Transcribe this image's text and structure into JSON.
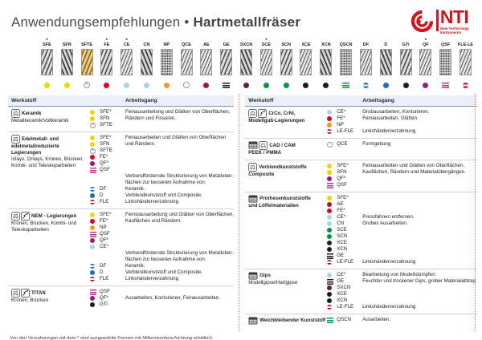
{
  "header": {
    "title1": "Anwendungsempfehlungen",
    "bullet": "•",
    "title2": "Hartmetallfräser",
    "logo": {
      "brand": "NTI",
      "sub1": "New Technology",
      "sub2": "Instruments",
      "color": "#d2121e"
    }
  },
  "burr_strip": {
    "items": [
      {
        "label": "SFE",
        "asterisk": true,
        "pattern": "diag",
        "marker": "dot",
        "color": "#f2d500"
      },
      {
        "label": "SFN",
        "asterisk": false,
        "pattern": "diag2",
        "marker": "dot",
        "color": "#f2d500"
      },
      {
        "label": "SFTE",
        "asterisk": false,
        "pattern": "gold",
        "marker": "circle-x",
        "color": "#9a9a9a"
      },
      {
        "label": "FE",
        "asterisk": true,
        "pattern": "diag",
        "marker": "dot",
        "color": "#e2001a"
      },
      {
        "label": "CE",
        "asterisk": true,
        "pattern": "cross",
        "marker": "dot",
        "color": "#a8d3ea"
      },
      {
        "label": "CN",
        "asterisk": false,
        "pattern": "diag2",
        "marker": "dot",
        "color": "#a8d3ea"
      },
      {
        "label": "NP",
        "asterisk": false,
        "pattern": "dots",
        "marker": "dot",
        "color": "#ef9b22"
      },
      {
        "label": "QCE",
        "asterisk": false,
        "pattern": "cross",
        "marker": "circle-outline",
        "color": "#ffffff"
      },
      {
        "label": "AE",
        "asterisk": false,
        "pattern": "cross",
        "marker": "dot",
        "color": "#9c1a24"
      },
      {
        "label": "GE",
        "asterisk": false,
        "pattern": "diag",
        "marker": "bars",
        "color": "#1d1d1b"
      },
      {
        "label": "SXCN",
        "asterisk": false,
        "pattern": "diag2",
        "marker": "dot",
        "color": "#5e1f3e"
      },
      {
        "label": "SCE",
        "asterisk": true,
        "pattern": "cross",
        "marker": "dot",
        "color": "#009640"
      },
      {
        "label": "SCN",
        "asterisk": false,
        "pattern": "diag",
        "marker": "dot",
        "color": "#009640"
      },
      {
        "label": "XCE",
        "asterisk": false,
        "pattern": "cross",
        "marker": "dot",
        "color": "#1d1d1b"
      },
      {
        "label": "XCN",
        "asterisk": false,
        "pattern": "diag2",
        "marker": "dot",
        "color": "#1d1d1b"
      },
      {
        "label": "QSCN",
        "asterisk": false,
        "pattern": "dots",
        "marker": "bars",
        "color": "#00a14b"
      },
      {
        "label": "DF",
        "asterisk": false,
        "pattern": "cross",
        "marker": "split",
        "color": "#1d70b7"
      },
      {
        "label": "D",
        "asterisk": false,
        "pattern": "diag2",
        "marker": "dot",
        "color": "#1d70b7"
      },
      {
        "label": "GTi",
        "asterisk": false,
        "pattern": "diag",
        "marker": "dot",
        "color": "#1d1d1b"
      },
      {
        "label": "QF",
        "asterisk": true,
        "pattern": "cross",
        "marker": "dot",
        "color": "#911d81"
      },
      {
        "label": "QSF",
        "asterisk": false,
        "pattern": "dots",
        "marker": "bars",
        "color": "#c62f92"
      },
      {
        "label": "FLE-LE",
        "asterisk": false,
        "pattern": "cross",
        "marker": "split",
        "color": "#c8102e"
      }
    ]
  },
  "tables": {
    "col_headers": {
      "werkstoff": "Werkstoff",
      "arbeitsgang": "Arbeitsgang"
    },
    "left": {
      "rows": [
        {
          "icons": [
            "crown-icon"
          ],
          "name": [
            {
              "t": "Keramik",
              "b": true
            },
            {
              "t": "Metallkeramik/Vollkeramik",
              "b": false
            }
          ],
          "lines": [
            {
              "m": "dot",
              "c": "#f2d500",
              "code": "SFE*",
              "text": "Feinausarbeitung und Glätten von Oberflächen,"
            },
            {
              "m": "dot",
              "c": "#f2d500",
              "code": "SFN",
              "text": "Rändern und Fissuren."
            },
            {
              "m": "circle-x",
              "code": "SFTE",
              "text": ""
            }
          ]
        },
        {
          "icons": [
            "crown-icon"
          ],
          "name": [
            {
              "t": "Edelmetall- und",
              "b": true
            },
            {
              "t": "edelmetallreduzierte",
              "b": true
            },
            {
              "t": "Legierungen",
              "b": true
            },
            {
              "t": "Inlays, Onlays, Kronen, Brücken,",
              "b": false
            },
            {
              "t": "Kombi- und Teleskoparbeiten",
              "b": false
            }
          ],
          "lines": [
            {
              "m": "dot",
              "c": "#f2d500",
              "code": "SFE*",
              "text": "Feinausarbeiten und Glätten von Oberflächen"
            },
            {
              "m": "dot",
              "c": "#f2d500",
              "code": "SFN",
              "text": "und Rändern."
            },
            {
              "m": "circle-x",
              "code": "SFTE",
              "text": ""
            },
            {
              "m": "dot",
              "c": "#e2001a",
              "code": "FE*",
              "text": ""
            },
            {
              "m": "dot",
              "c": "#911d81",
              "code": "QF*",
              "text": ""
            },
            {
              "m": "bars",
              "c": "#c62f92",
              "code": "QSF",
              "text": ""
            },
            {
              "text": "Verbundfördernde Strukturierung von Metallober-"
            },
            {
              "text": "flächen zur besseren Aufnahme von:"
            },
            {
              "m": "split",
              "c": "#1d70b7",
              "code": "DF",
              "text": "Keramik."
            },
            {
              "m": "dot",
              "c": "#1d70b7",
              "code": "D",
              "text": "Verblendkunststoff und Composite."
            },
            {
              "m": "split",
              "c": "#c8102e",
              "code": "FLE",
              "text": "Linkshänderverzahnung"
            }
          ]
        },
        {
          "icons": [
            "crown-icon",
            "clasp-icon"
          ],
          "name": [
            {
              "t": "NEM - Legierungen",
              "b": true
            },
            {
              "t": "Kronen, Brücken, Kombi- und",
              "b": false
            },
            {
              "t": "Teleskoparbeiten",
              "b": false
            }
          ],
          "lines": [
            {
              "m": "dot",
              "c": "#f2d500",
              "code": "SFE*",
              "text": "Feinstausarbeitung und Glätten von Oberflächen,"
            },
            {
              "m": "dot",
              "c": "#e2001a",
              "code": "FE*",
              "text": "Kauflächen und Rändern."
            },
            {
              "m": "dot",
              "c": "#ef9b22",
              "code": "NP",
              "text": ""
            },
            {
              "m": "bars",
              "c": "#c62f92",
              "code": "QSF",
              "text": ""
            },
            {
              "m": "dot",
              "c": "#911d81",
              "code": "QF*",
              "text": ""
            },
            {
              "m": "dot",
              "c": "#a8d3ea",
              "code": "CE*",
              "text": ""
            },
            {
              "text": "Verbundfördernde Strukturierung von Metallober-"
            },
            {
              "text": "flächen zur besseren Aufnahme von:"
            },
            {
              "m": "split",
              "c": "#1d70b7",
              "code": "DF",
              "text": "Keramik."
            },
            {
              "m": "dot",
              "c": "#1d70b7",
              "code": "D",
              "text": "Verblendkunststoff und Composite."
            },
            {
              "m": "split",
              "c": "#c8102e",
              "code": "FLE",
              "text": "Linkshänderverzahnung"
            }
          ]
        },
        {
          "icons": [
            "crown-icon",
            "clasp-icon"
          ],
          "name": [
            {
              "t": "TITAN",
              "b": true
            },
            {
              "t": "Kronen, Brücken",
              "b": false
            }
          ],
          "lines": [
            {
              "m": "bars",
              "c": "#c62f92",
              "code": "QSF",
              "text": ""
            },
            {
              "m": "dot",
              "c": "#911d81",
              "code": "QF*",
              "text": "Ausarbeiten, Konturieren, Feinausarbeiten."
            },
            {
              "m": "dot",
              "c": "#1d1d1b",
              "code": "GTi",
              "text": ""
            }
          ]
        }
      ]
    },
    "right": {
      "rows": [
        {
          "icons": [
            "crown-icon",
            "clasp-icon"
          ],
          "name": [
            {
              "t": "CrCo, CrNi,",
              "b": true
            },
            {
              "t": "Modellguß-Legierungen",
              "b": true
            }
          ],
          "lines": [
            {
              "m": "dot",
              "c": "#a8d3ea",
              "code": "CE*",
              "text": "Grobausarbeiten, Konturieren."
            },
            {
              "m": "dot",
              "c": "#e2001a",
              "code": "FE*",
              "text": "Feinausarbeiten, Glätten."
            },
            {
              "m": "dot",
              "c": "#ef9b22",
              "code": "NP",
              "text": ""
            },
            {
              "m": "split",
              "c": "#c8102e",
              "code": "LE-FLE",
              "text": "Linkshänderverzahnung"
            }
          ]
        },
        {
          "icons": [
            "denture-icon",
            "crown-icon"
          ],
          "name": [
            {
              "t": "CAD / CAM",
              "b": true
            },
            {
              "t": "PEEK / PMMA",
              "b": true
            }
          ],
          "lines": [
            {
              "m": "circle-outline",
              "code": "QCE",
              "text": "Formgebung"
            }
          ]
        },
        {
          "icons": [
            "crown-icon"
          ],
          "name": [
            {
              "t": "Verblendkunststoffe",
              "b": true
            },
            {
              "t": "Composite",
              "b": true
            }
          ],
          "lines": [
            {
              "m": "dot",
              "c": "#f2d500",
              "code": "SFE*",
              "text": "Feinausarbeiten und Glätten von Oberflächen,"
            },
            {
              "m": "dot",
              "c": "#f2d500",
              "code": "SFN",
              "text": "Kauflächen, Rändern und Materialübergängen."
            },
            {
              "m": "dot",
              "c": "#911d81",
              "code": "QF*",
              "text": ""
            },
            {
              "m": "bars",
              "c": "#c62f92",
              "code": "QSF",
              "text": ""
            }
          ]
        },
        {
          "icons": [
            "denture-icon"
          ],
          "name": [
            {
              "t": "Prothesenkunststoffe",
              "b": true
            },
            {
              "t": "und Löffelmaterialien",
              "b": true
            }
          ],
          "lines": [
            {
              "m": "dot",
              "c": "#f2d500",
              "code": "SFE*",
              "text": ""
            },
            {
              "m": "dot",
              "c": "#9c1a24",
              "code": "AE",
              "text": ""
            },
            {
              "m": "dot",
              "c": "#e2001a",
              "code": "FE*",
              "text": ""
            },
            {
              "m": "dot",
              "c": "#a8d3ea",
              "code": "CE*",
              "text": "Pressfahnen entfernen."
            },
            {
              "m": "dot",
              "c": "#a8d3ea",
              "code": "CN",
              "text": "Grobes Ausarbeiten."
            },
            {
              "m": "dot",
              "c": "#009640",
              "code": "SCE",
              "text": ""
            },
            {
              "m": "dot",
              "c": "#009640",
              "code": "SCN",
              "text": ""
            },
            {
              "m": "dot",
              "c": "#1d1d1b",
              "code": "XCE",
              "text": ""
            },
            {
              "m": "dot",
              "c": "#1d1d1b",
              "code": "XCN",
              "text": ""
            },
            {
              "m": "bars",
              "c": "#1d1d1b",
              "code": "GE",
              "text": ""
            },
            {
              "m": "split",
              "c": "#c8102e",
              "code": "LE-FLE",
              "text": "Linkshänderverzahnung"
            }
          ]
        },
        {
          "icons": [
            "denture-icon"
          ],
          "name": [
            {
              "t": "Gips",
              "b": true
            },
            {
              "t": "Modellgipse/Hartgipse",
              "b": false
            }
          ],
          "lines": [
            {
              "m": "dot",
              "c": "#a8d3ea",
              "code": "CE*",
              "text": "Bearbeitung von Modellstümpfen."
            },
            {
              "m": "bars",
              "c": "#1d1d1b",
              "code": "GE",
              "text": "Feuchter und trockener Gips, grober Materialabtrag."
            },
            {
              "m": "dot",
              "c": "#5e1f3e",
              "code": "SXCN",
              "text": ""
            },
            {
              "m": "dot",
              "c": "#1d1d1b",
              "code": "XCE",
              "text": ""
            },
            {
              "m": "dot",
              "c": "#1d1d1b",
              "code": "XCN",
              "text": ""
            },
            {
              "m": "split",
              "c": "#c8102e",
              "code": "LE-FLE",
              "text": "Linkshänderverzahnung"
            }
          ]
        },
        {
          "icons": [
            "denture-icon"
          ],
          "name": [
            {
              "t": "Weichbleibender Kunststoff",
              "b": true
            }
          ],
          "lines": [
            {
              "m": "bars",
              "c": "#00a14b",
              "code": "QSCN",
              "text": "Ausarbeiten."
            }
          ]
        }
      ]
    }
  },
  "footnote": {
    "pre": "Von den Verzahnungen mit dem * sind ausgewählte Formen mit ",
    "italic": "Millenniumbeschichtung",
    "post": " erhältlich."
  }
}
